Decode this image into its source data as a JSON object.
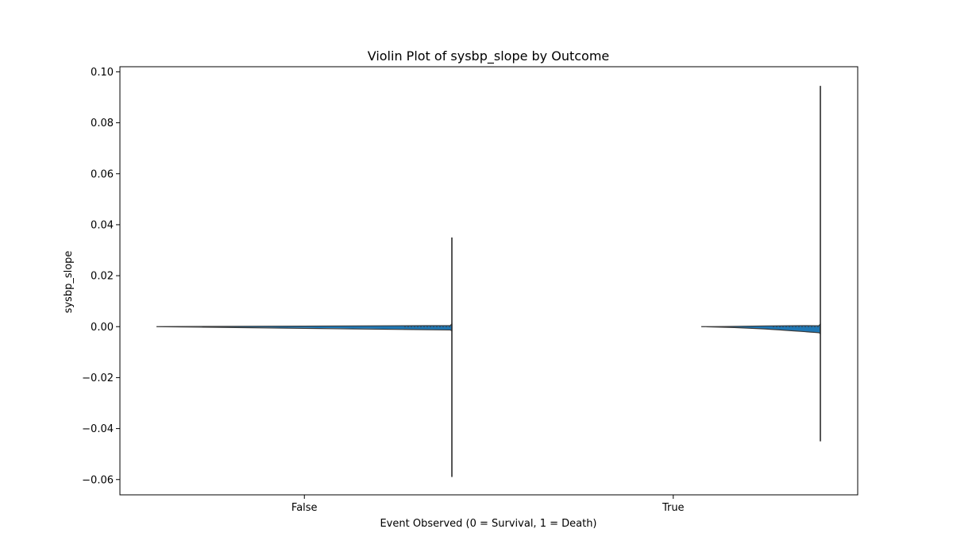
{
  "chart_data": {
    "type": "violin",
    "title": "Violin Plot of sysbp_slope by Outcome",
    "xlabel": "Event Observed (0 = Survival, 1 = Death)",
    "ylabel": "sysbp_slope",
    "categories": [
      "False",
      "True"
    ],
    "ylim": [
      -0.066,
      0.102
    ],
    "yticks": [
      0.1,
      0.08,
      0.06,
      0.04,
      0.02,
      0.0,
      -0.02,
      -0.04,
      -0.06
    ],
    "ytick_labels": [
      "0.10",
      "0.08",
      "0.06",
      "0.04",
      "0.02",
      "0.00",
      "−0.02",
      "−0.04",
      "−0.06"
    ],
    "grid": false,
    "fill_color": "#1f77b4",
    "series": [
      {
        "category": "False",
        "min": -0.059,
        "max": 0.035,
        "median": 0.0,
        "q1": -0.0003,
        "q3": 0.0003
      },
      {
        "category": "True",
        "min": -0.045,
        "max": 0.0945,
        "median": 0.0,
        "q1": -0.0005,
        "q3": 0.0005
      }
    ]
  }
}
